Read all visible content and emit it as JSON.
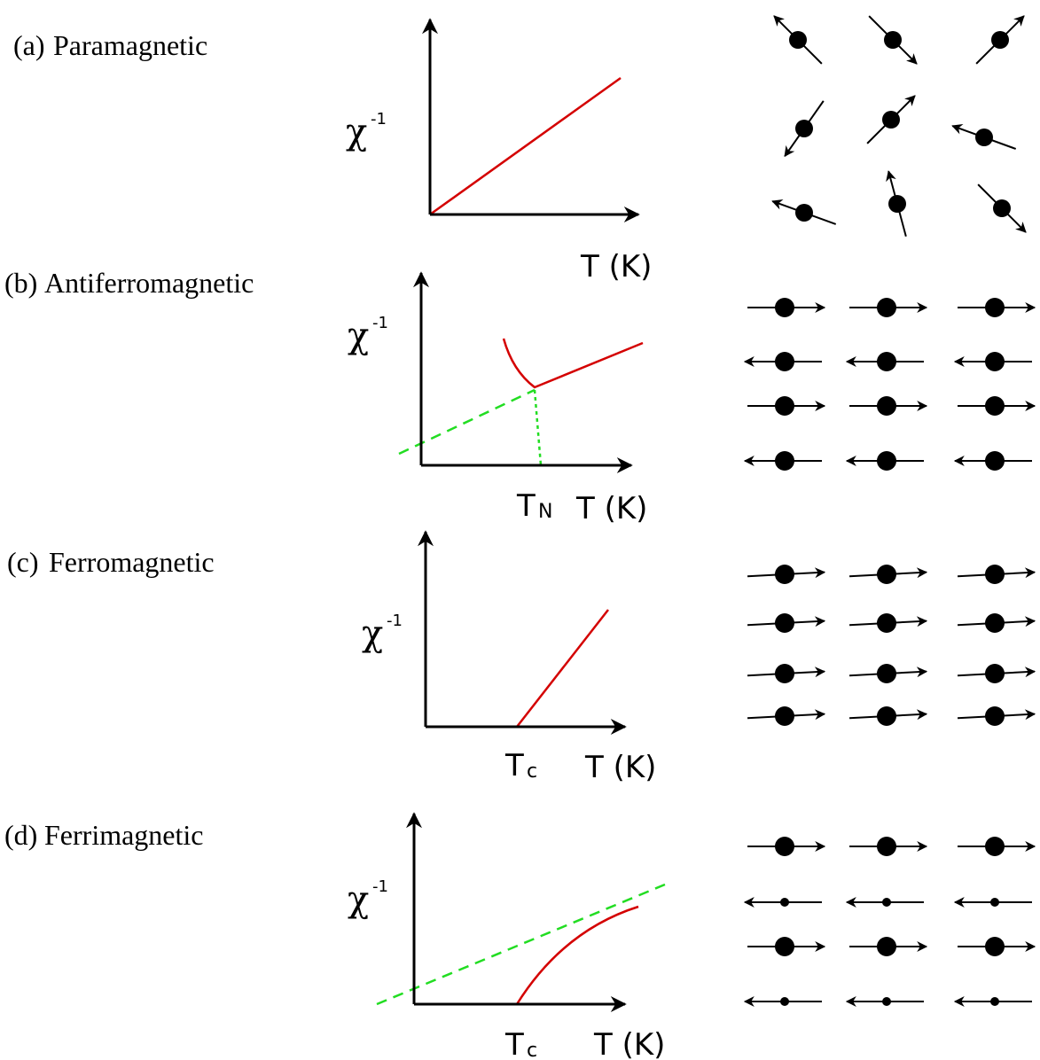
{
  "panels": [
    {
      "label": "(a)",
      "name": "Paramagnetic",
      "y_axis": "χ",
      "y_axis_sup": "-1",
      "x_axis": "T (K)"
    },
    {
      "label": "(b)",
      "name": "Antiferromagnetic",
      "y_axis": "χ",
      "y_axis_sup": "-1",
      "x_axis": "T (K)",
      "transition": "T",
      "transition_sub": "N"
    },
    {
      "label": "(c)",
      "name": "Ferromagnetic",
      "y_axis": "χ",
      "y_axis_sup": "-1",
      "x_axis": "T (K)",
      "transition": "T",
      "transition_sub": "c"
    },
    {
      "label": "(d)",
      "name": "Ferrimagnetic",
      "y_axis": "χ",
      "y_axis_sup": "-1",
      "x_axis": "T (K)",
      "transition": "T",
      "transition_sub": "c"
    }
  ]
}
